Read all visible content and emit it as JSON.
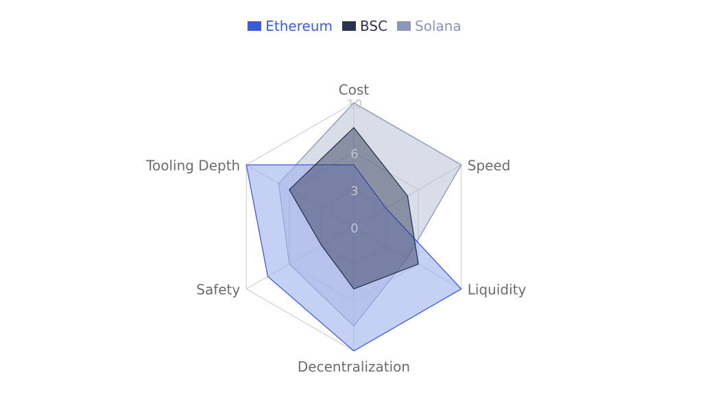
{
  "chart_data": {
    "type": "radar",
    "title": "",
    "axes": [
      "Cost",
      "Speed",
      "Liquidity",
      "Decentralization",
      "Safety",
      "Tooling Depth"
    ],
    "radial_ticks": [
      0,
      3,
      6,
      10
    ],
    "range": [
      0,
      10
    ],
    "grid": true,
    "legend_position": "top-center",
    "series": [
      {
        "name": "Ethereum",
        "values": [
          5,
          3,
          10,
          10,
          8,
          10
        ],
        "color": "#3b5bdb",
        "fill": "#9fb1ee"
      },
      {
        "name": "BSC",
        "values": [
          8,
          5,
          6,
          5,
          3,
          6
        ],
        "color": "#2b3250",
        "fill": "#2b3250"
      },
      {
        "name": "Solana",
        "values": [
          10,
          10,
          5,
          8,
          6,
          7
        ],
        "color": "#8a96b8",
        "fill": "#b4bcd0"
      }
    ]
  }
}
